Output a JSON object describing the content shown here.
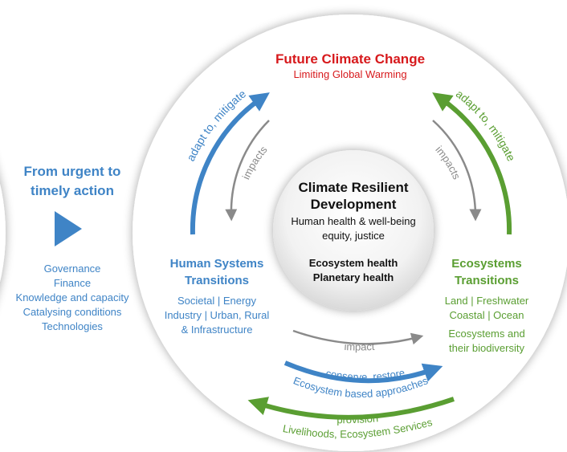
{
  "title": {
    "main": "Future Climate Change",
    "sub": "Limiting Global Warming"
  },
  "action": {
    "heading": [
      "From urgent to",
      "timely action"
    ],
    "items": [
      "Governance",
      "Finance",
      "Knowledge and capacity",
      "Catalysing conditions",
      "Technologies"
    ]
  },
  "center": {
    "title": [
      "Climate Resilient",
      "Development"
    ],
    "lines": [
      "Human health & well-being",
      "equity, justice"
    ],
    "health": [
      "Ecosystem health",
      "Planetary health"
    ]
  },
  "human": {
    "title": [
      "Human Systems",
      "Transitions"
    ],
    "lines": [
      "Societal | Energy",
      "Industry | Urban, Rural",
      "& Infrastructure"
    ]
  },
  "eco": {
    "title": [
      "Ecosystems",
      "Transitions"
    ],
    "lines": [
      "Land | Freshwater",
      "Coastal | Ocean",
      "Ecosystems and",
      "their biodiversity"
    ]
  },
  "arrows": {
    "left": "adapt to, mitigate",
    "right": "adapt to, mitigate",
    "impacts_left": "impacts",
    "impacts_right": "impacts",
    "impact": "impact",
    "conserve": "conserve, restore",
    "eba": "Ecosystem based approaches",
    "provision": "provision",
    "services": "Livelihoods, Ecosystem Services"
  }
}
